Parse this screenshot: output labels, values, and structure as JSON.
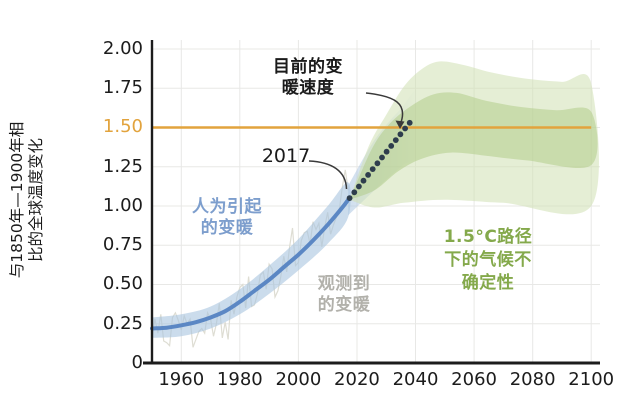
{
  "chart_data": {
    "type": "line",
    "ylabel_lines": [
      "与1850年—1900年相",
      "比的全球温度变化"
    ],
    "x_range": [
      1950,
      2103
    ],
    "y_range": [
      0,
      2.057
    ],
    "x_ticks": [
      1960,
      1980,
      2000,
      2020,
      2040,
      2060,
      2080,
      2100
    ],
    "y_ticks": [
      {
        "label": "2.00",
        "value": 2.0
      },
      {
        "label": "1.75",
        "value": 1.75
      },
      {
        "label": "1.50",
        "value": 1.5,
        "highlight": true
      },
      {
        "label": "1.25",
        "value": 1.25
      },
      {
        "label": "1.00",
        "value": 1.0
      },
      {
        "label": "0.75",
        "value": 0.75
      },
      {
        "label": "0.50",
        "value": 0.5
      },
      {
        "label": "0.25",
        "value": 0.25
      },
      {
        "label": "0",
        "value": 0
      }
    ],
    "grid": true,
    "grid_color": "#e8e8e6",
    "axis_color": "#1c1c1c",
    "reference_line": {
      "value": 1.5,
      "color": "#e2a33d",
      "label": "1.50"
    },
    "annotations": {
      "year_2017": "2017"
    },
    "series": {
      "observed": {
        "label_lines": [
          "观测到",
          "的变暖"
        ],
        "label_color": "#b2b1ab",
        "line_color": "#deddd3",
        "start_year": 1950,
        "values": [
          0.16,
          0.28,
          0.19,
          0.31,
          0.14,
          0.13,
          0.11,
          0.29,
          0.32,
          0.27,
          0.21,
          0.3,
          0.25,
          0.28,
          0.1,
          0.15,
          0.2,
          0.22,
          0.19,
          0.32,
          0.28,
          0.17,
          0.25,
          0.38,
          0.16,
          0.26,
          0.15,
          0.4,
          0.31,
          0.42,
          0.48,
          0.5,
          0.35,
          0.55,
          0.36,
          0.37,
          0.44,
          0.56,
          0.58,
          0.47,
          0.63,
          0.6,
          0.42,
          0.46,
          0.55,
          0.68,
          0.58,
          0.74,
          0.86,
          0.62,
          0.64,
          0.78,
          0.83,
          0.84,
          0.76,
          0.9,
          0.85,
          0.89,
          0.74,
          0.87,
          0.96,
          0.82,
          0.88,
          0.93,
          0.98,
          1.12,
          1.23,
          1.1
        ]
      },
      "human_induced": {
        "label_lines": [
          "人为引起",
          "的变暖"
        ],
        "label_color": "#7d9ecd",
        "line_color": "#5b87c4",
        "band_color": "#a9c4e0",
        "points": [
          [
            1950,
            0.22
          ],
          [
            1955,
            0.225
          ],
          [
            1960,
            0.24
          ],
          [
            1965,
            0.26
          ],
          [
            1970,
            0.29
          ],
          [
            1975,
            0.33
          ],
          [
            1980,
            0.39
          ],
          [
            1985,
            0.46
          ],
          [
            1990,
            0.53
          ],
          [
            1995,
            0.61
          ],
          [
            2000,
            0.69
          ],
          [
            2005,
            0.78
          ],
          [
            2010,
            0.88
          ],
          [
            2015,
            0.99
          ],
          [
            2017,
            1.04
          ]
        ],
        "band_upper": [
          [
            1950,
            0.29
          ],
          [
            1960,
            0.31
          ],
          [
            1970,
            0.36
          ],
          [
            1980,
            0.47
          ],
          [
            1990,
            0.62
          ],
          [
            2000,
            0.79
          ],
          [
            2010,
            1.0
          ],
          [
            2017,
            1.15
          ]
        ],
        "band_lower": [
          [
            1950,
            0.16
          ],
          [
            1960,
            0.17
          ],
          [
            1970,
            0.22
          ],
          [
            1980,
            0.31
          ],
          [
            1990,
            0.44
          ],
          [
            2000,
            0.59
          ],
          [
            2010,
            0.76
          ],
          [
            2017,
            0.93
          ]
        ]
      },
      "projection_fade": {
        "color": "#a9c4e0",
        "upper": [
          [
            2017,
            1.13
          ],
          [
            2026,
            1.42
          ],
          [
            2035,
            1.62
          ],
          [
            2041,
            1.73
          ]
        ],
        "lower": [
          [
            2017,
            0.94
          ],
          [
            2026,
            1.1
          ],
          [
            2035,
            1.25
          ],
          [
            2041,
            1.35
          ]
        ]
      },
      "current_rate": {
        "label_lines": [
          "目前的变",
          "暖速度"
        ],
        "label_color": "#1b1b1b",
        "dot_color": "#2e3d4d",
        "start": [
          2017.5,
          1.05
        ],
        "end": [
          2038,
          1.53
        ],
        "dot_count": 14
      },
      "pathway_uncertainty": {
        "label_lines": [
          "1.5°C路径",
          "下的气候不",
          "确定性"
        ],
        "label_color": "#84a94b",
        "light_color": "#cfe0b2",
        "dark_color": "#aec983",
        "light_upper": [
          [
            2017.5,
            1.04
          ],
          [
            2024,
            1.38
          ],
          [
            2030,
            1.58
          ],
          [
            2036,
            1.76
          ],
          [
            2042,
            1.87
          ],
          [
            2048,
            1.92
          ],
          [
            2056,
            1.9
          ],
          [
            2066,
            1.85
          ],
          [
            2078,
            1.81
          ],
          [
            2090,
            1.79
          ],
          [
            2100,
            1.78
          ]
        ],
        "light_lower": [
          [
            2017.5,
            1.04
          ],
          [
            2026,
            0.99
          ],
          [
            2036,
            1.02
          ],
          [
            2050,
            1.04
          ],
          [
            2070,
            1.02
          ],
          [
            2100,
            1.0
          ]
        ],
        "dark_upper": [
          [
            2017.5,
            1.04
          ],
          [
            2025,
            1.36
          ],
          [
            2031,
            1.52
          ],
          [
            2038,
            1.63
          ],
          [
            2046,
            1.71
          ],
          [
            2054,
            1.72
          ],
          [
            2064,
            1.67
          ],
          [
            2076,
            1.63
          ],
          [
            2088,
            1.61
          ],
          [
            2100,
            1.6
          ]
        ],
        "dark_lower": [
          [
            2017.5,
            1.04
          ],
          [
            2026,
            1.1
          ],
          [
            2034,
            1.22
          ],
          [
            2042,
            1.3
          ],
          [
            2052,
            1.34
          ],
          [
            2064,
            1.32
          ],
          [
            2078,
            1.29
          ],
          [
            2100,
            1.26
          ]
        ]
      }
    }
  }
}
